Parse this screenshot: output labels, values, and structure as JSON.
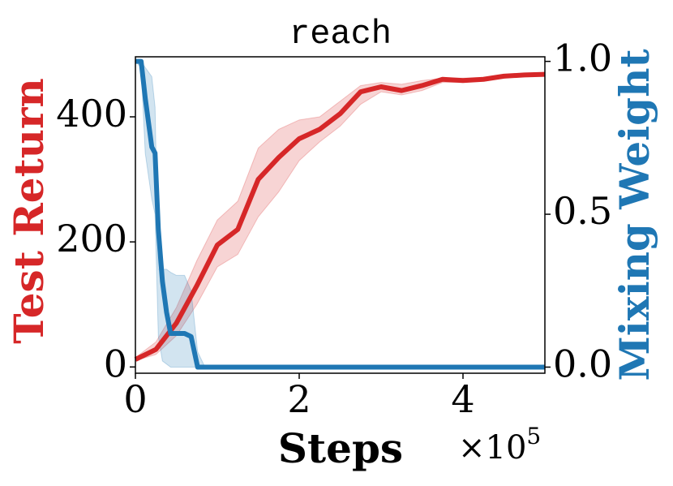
{
  "chart_data": {
    "type": "line",
    "title": "reach",
    "xlabel": "Steps",
    "ylabel": "Test Return",
    "y2label": "Mixing Weight",
    "x_multiplier": "×10",
    "x_multiplier_exp": "5",
    "xlim": [
      0,
      5
    ],
    "xticks": [
      0,
      2,
      4
    ],
    "ylim": [
      -10,
      496
    ],
    "yticks": [
      0,
      200,
      400
    ],
    "y2lim": [
      -0.02,
      1.015
    ],
    "y2ticks": [
      {
        "value": 0,
        "label": "0.0"
      },
      {
        "value": 0.5,
        "label": "0.5"
      },
      {
        "value": 1,
        "label": "1.0"
      }
    ],
    "ylabel_color": "#d62728",
    "y2label_color": "#1f77b4",
    "series": [
      {
        "name": "Test Return",
        "color": "#d62728",
        "axis": "y",
        "x": [
          0,
          0.25,
          0.5,
          0.75,
          1.0,
          1.25,
          1.5,
          1.75,
          2.0,
          2.25,
          2.5,
          2.75,
          3.0,
          3.25,
          3.5,
          3.75,
          4.0,
          4.25,
          4.5,
          4.75,
          5.0
        ],
        "values": [
          12,
          28,
          70,
          130,
          195,
          220,
          300,
          335,
          365,
          380,
          405,
          440,
          448,
          442,
          450,
          460,
          458,
          460,
          465,
          467,
          468
        ],
        "lower": [
          10,
          20,
          50,
          100,
          160,
          180,
          240,
          280,
          330,
          360,
          385,
          420,
          440,
          435,
          442,
          455,
          455,
          458,
          462,
          465,
          466
        ],
        "upper": [
          15,
          40,
          95,
          170,
          235,
          265,
          350,
          380,
          395,
          400,
          425,
          450,
          455,
          452,
          458,
          462,
          462,
          463,
          468,
          469,
          470
        ]
      },
      {
        "name": "Mixing Weight",
        "color": "#1f77b4",
        "axis": "y2",
        "x": [
          0,
          0.07,
          0.12,
          0.2,
          0.24,
          0.28,
          0.33,
          0.38,
          0.43,
          0.5,
          0.6,
          0.68,
          0.76,
          0.85,
          1.0,
          2,
          3,
          4,
          5
        ],
        "values": [
          1.0,
          1.0,
          0.88,
          0.72,
          0.7,
          0.45,
          0.28,
          0.18,
          0.11,
          0.11,
          0.11,
          0.1,
          0.0,
          0,
          0,
          0,
          0,
          0,
          0
        ],
        "lower": [
          1.0,
          0.98,
          0.7,
          0.55,
          0.5,
          0.1,
          0.02,
          0.01,
          0,
          0,
          0,
          0,
          0,
          0,
          0,
          0,
          0,
          0,
          0
        ],
        "upper": [
          1.0,
          1.0,
          0.98,
          0.95,
          0.85,
          0.32,
          0.32,
          0.32,
          0.31,
          0.3,
          0.3,
          0.25,
          0.05,
          0,
          0,
          0,
          0,
          0,
          0
        ]
      }
    ]
  }
}
